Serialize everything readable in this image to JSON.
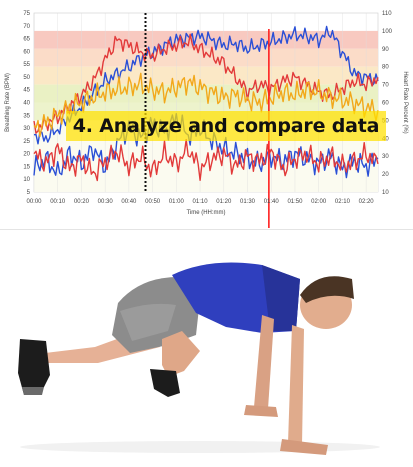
{
  "banner": {
    "text": "4. Analyze and compare data"
  },
  "chart_data": {
    "type": "line",
    "title": "",
    "xlabel": "Time (HH:mm)",
    "ylabel_left": "Breathing Rate (BPM)",
    "ylabel_right": "Heart Rate Percent (%)",
    "x_ticks": [
      "00:00",
      "00:10",
      "00:20",
      "00:30",
      "00:40",
      "00:50",
      "01:00",
      "01:10",
      "01:20",
      "01:30",
      "01:40",
      "01:50",
      "02:00",
      "02:10",
      "02:20"
    ],
    "y_left_ticks": [
      "5",
      "10",
      "15",
      "20",
      "25",
      "30",
      "35",
      "40",
      "45",
      "50",
      "55",
      "60",
      "65",
      "70",
      "75"
    ],
    "y_right_ticks": [
      "10",
      "20",
      "30",
      "40",
      "50",
      "60",
      "70",
      "80",
      "90",
      "100",
      "110"
    ],
    "ylim_left": [
      5,
      75
    ],
    "ylim_right": [
      10,
      110
    ],
    "xlim_minutes": [
      0,
      145
    ],
    "zones_right_pct": [
      {
        "from": 90,
        "to": 100,
        "color": "#f8c9c0"
      },
      {
        "from": 80,
        "to": 90,
        "color": "#fbdcc8"
      },
      {
        "from": 70,
        "to": 80,
        "color": "#fbe8c6"
      },
      {
        "from": 60,
        "to": 70,
        "color": "#eaf1c4"
      },
      {
        "from": 50,
        "to": 60,
        "color": "#edf3cc"
      },
      {
        "from": 10,
        "to": 50,
        "color": "#fbfbf0"
      }
    ],
    "markers": [
      {
        "x_minutes": 47,
        "style": "dotted",
        "color": "#111111"
      },
      {
        "x_minutes": 99,
        "style": "solid",
        "color": "#ff2020"
      }
    ],
    "series": [
      {
        "color": "#2a4fd6",
        "axis": "right",
        "x": [
          0,
          5,
          10,
          15,
          20,
          25,
          30,
          35,
          40,
          45,
          50,
          55,
          60,
          65,
          70,
          75,
          80,
          85,
          90,
          95,
          100,
          105,
          110,
          115,
          120,
          125,
          130,
          135,
          140,
          145
        ],
        "y": [
          42,
          40,
          45,
          52,
          58,
          65,
          72,
          76,
          80,
          85,
          88,
          92,
          95,
          96,
          97,
          95,
          92,
          93,
          90,
          92,
          94,
          96,
          98,
          97,
          95,
          100,
          88,
          76,
          74,
          72
        ]
      },
      {
        "color": "#e23a3a",
        "axis": "right",
        "x": [
          0,
          5,
          10,
          15,
          20,
          25,
          30,
          35,
          40,
          45,
          50,
          55,
          60,
          65,
          70,
          75,
          80,
          85,
          90,
          95,
          100,
          105,
          110,
          115,
          120,
          125,
          130,
          135,
          140,
          145
        ],
        "y": [
          45,
          48,
          52,
          58,
          64,
          72,
          84,
          95,
          92,
          88,
          86,
          90,
          92,
          94,
          90,
          86,
          82,
          74,
          66,
          70,
          68,
          72,
          74,
          70,
          66,
          64,
          68,
          72,
          70,
          74
        ]
      },
      {
        "color": "#f2a81a",
        "axis": "left",
        "x": [
          0,
          5,
          10,
          15,
          20,
          25,
          30,
          35,
          40,
          45,
          50,
          55,
          60,
          65,
          70,
          75,
          80,
          85,
          90,
          95,
          100,
          105,
          110,
          115,
          120,
          125,
          130,
          135,
          140,
          145
        ],
        "y": [
          30,
          32,
          35,
          38,
          40,
          42,
          44,
          45,
          46,
          47,
          45,
          44,
          46,
          48,
          46,
          44,
          42,
          43,
          41,
          40,
          42,
          44,
          43,
          45,
          44,
          42,
          41,
          40,
          38,
          37
        ]
      },
      {
        "color": "#2a4fd6",
        "axis": "left",
        "x": [
          0,
          5,
          10,
          15,
          20,
          25,
          30,
          35,
          40,
          45,
          50,
          55,
          60,
          65,
          70,
          75,
          80,
          85,
          90,
          95,
          100,
          105,
          110,
          115,
          120,
          125,
          130,
          135,
          140,
          145
        ],
        "y": [
          14,
          18,
          12,
          20,
          16,
          22,
          15,
          24,
          30,
          26,
          32,
          28,
          34,
          27,
          30,
          25,
          22,
          20,
          18,
          16,
          19,
          17,
          20,
          18,
          16,
          19,
          14,
          17,
          15,
          18
        ]
      },
      {
        "color": "#e23a3a",
        "axis": "left",
        "x": [
          0,
          5,
          10,
          15,
          20,
          25,
          30,
          35,
          40,
          45,
          50,
          55,
          60,
          65,
          70,
          75,
          80,
          85,
          90,
          95,
          100,
          105,
          110,
          115,
          120,
          125,
          130,
          135,
          140,
          145
        ],
        "y": [
          20,
          16,
          22,
          14,
          18,
          12,
          17,
          21,
          15,
          19,
          13,
          20,
          16,
          22,
          14,
          18,
          20,
          15,
          19,
          17,
          21,
          14,
          18,
          20,
          16,
          19,
          15,
          17,
          20,
          16
        ]
      }
    ],
    "grid": true,
    "legend": "none"
  }
}
